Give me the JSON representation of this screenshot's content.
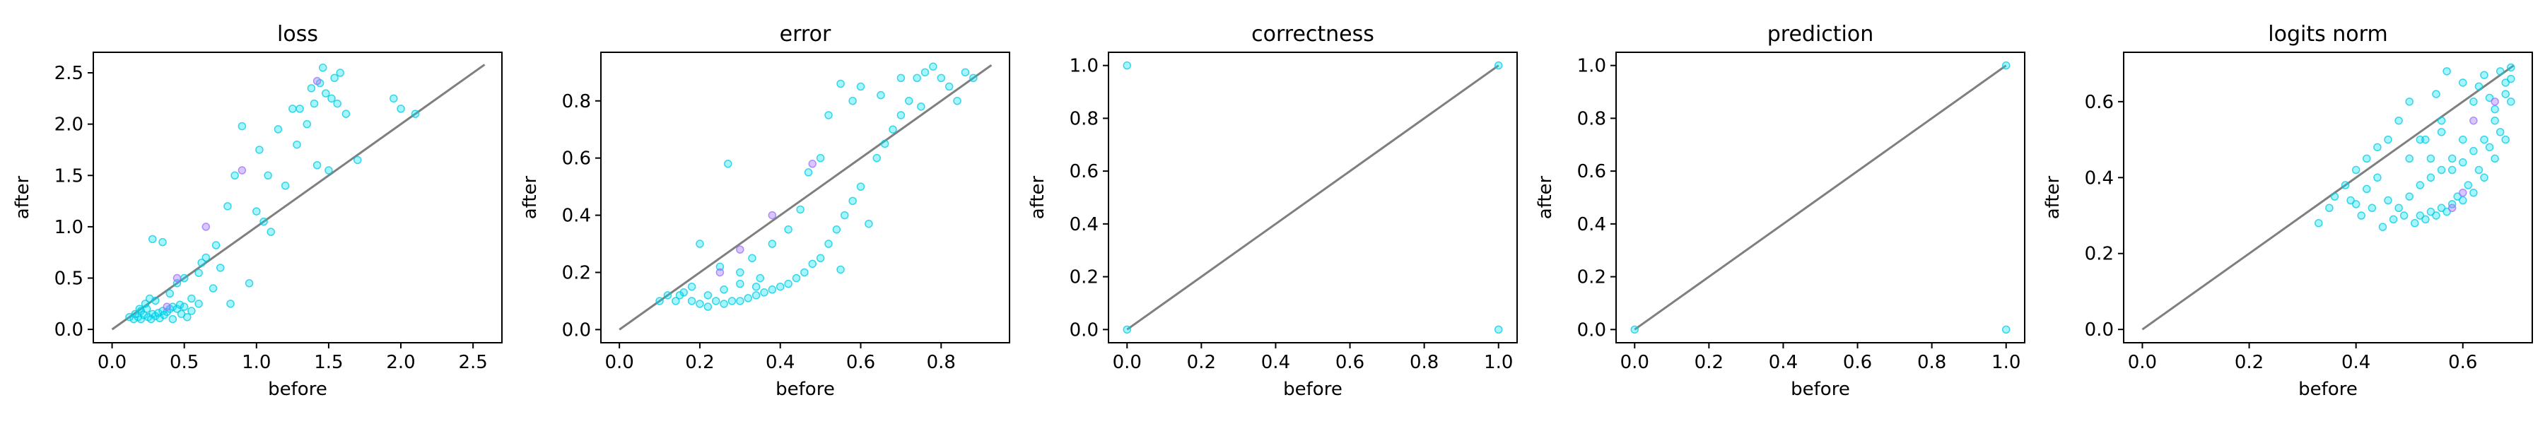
{
  "chart_data": [
    {
      "type": "scatter",
      "title": "loss",
      "xlabel": "before",
      "ylabel": "after",
      "xlim": [
        -0.13,
        2.7
      ],
      "ylim": [
        -0.13,
        2.7
      ],
      "xticks": [
        0.0,
        0.5,
        1.0,
        1.5,
        2.0,
        2.5
      ],
      "yticks": [
        0.0,
        0.5,
        1.0,
        1.5,
        2.0,
        2.5
      ],
      "tick_decimals": 1,
      "diagonal": [
        0,
        2.58
      ],
      "points": [
        [
          0.15,
          0.1
        ],
        [
          0.18,
          0.12
        ],
        [
          0.2,
          0.1
        ],
        [
          0.22,
          0.14
        ],
        [
          0.25,
          0.12
        ],
        [
          0.28,
          0.15
        ],
        [
          0.3,
          0.13
        ],
        [
          0.32,
          0.16
        ],
        [
          0.35,
          0.18
        ],
        [
          0.38,
          0.17
        ],
        [
          0.4,
          0.2
        ],
        [
          0.42,
          0.22
        ],
        [
          0.45,
          0.2
        ],
        [
          0.47,
          0.24
        ],
        [
          0.5,
          0.22
        ],
        [
          0.2,
          0.18
        ],
        [
          0.24,
          0.2
        ],
        [
          0.27,
          0.1
        ],
        [
          0.33,
          0.11
        ],
        [
          0.36,
          0.14
        ],
        [
          0.12,
          0.12
        ],
        [
          0.16,
          0.15
        ],
        [
          0.19,
          0.2
        ],
        [
          0.23,
          0.25
        ],
        [
          0.26,
          0.3
        ],
        [
          0.3,
          0.28
        ],
        [
          0.28,
          0.88
        ],
        [
          0.35,
          0.85
        ],
        [
          0.4,
          0.35
        ],
        [
          0.45,
          0.45
        ],
        [
          0.5,
          0.5
        ],
        [
          0.55,
          0.3
        ],
        [
          0.6,
          0.55
        ],
        [
          0.62,
          0.65
        ],
        [
          0.65,
          0.7
        ],
        [
          0.7,
          0.4
        ],
        [
          0.72,
          0.82
        ],
        [
          0.75,
          0.6
        ],
        [
          0.8,
          1.2
        ],
        [
          0.82,
          0.25
        ],
        [
          0.85,
          1.5
        ],
        [
          0.9,
          1.98
        ],
        [
          0.95,
          0.45
        ],
        [
          1.0,
          1.15
        ],
        [
          1.02,
          1.75
        ],
        [
          1.05,
          1.05
        ],
        [
          1.08,
          1.5
        ],
        [
          1.1,
          0.95
        ],
        [
          1.15,
          1.95
        ],
        [
          1.2,
          1.4
        ],
        [
          1.25,
          2.15
        ],
        [
          1.28,
          1.8
        ],
        [
          1.3,
          2.15
        ],
        [
          1.35,
          2.0
        ],
        [
          1.38,
          2.35
        ],
        [
          1.4,
          2.2
        ],
        [
          1.42,
          1.6
        ],
        [
          1.44,
          2.4
        ],
        [
          1.46,
          2.55
        ],
        [
          1.48,
          2.3
        ],
        [
          1.5,
          1.55
        ],
        [
          1.52,
          2.25
        ],
        [
          1.54,
          2.45
        ],
        [
          1.56,
          2.2
        ],
        [
          1.58,
          2.5
        ],
        [
          1.62,
          2.1
        ],
        [
          1.7,
          1.65
        ],
        [
          1.95,
          2.25
        ],
        [
          2.0,
          2.15
        ],
        [
          2.1,
          2.1
        ],
        [
          0.55,
          0.18
        ],
        [
          0.6,
          0.25
        ],
        [
          0.48,
          0.15
        ],
        [
          0.52,
          0.12
        ],
        [
          0.42,
          0.1
        ]
      ],
      "highlight_points": [
        [
          0.45,
          0.5
        ],
        [
          0.65,
          1.0
        ],
        [
          1.42,
          2.42
        ],
        [
          0.9,
          1.55
        ],
        [
          0.38,
          0.22
        ]
      ]
    },
    {
      "type": "scatter",
      "title": "error",
      "xlabel": "before",
      "ylabel": "after",
      "xlim": [
        -0.046,
        0.97
      ],
      "ylim": [
        -0.046,
        0.97
      ],
      "xticks": [
        0.0,
        0.2,
        0.4,
        0.6,
        0.8
      ],
      "yticks": [
        0.0,
        0.2,
        0.4,
        0.6,
        0.8
      ],
      "tick_decimals": 1,
      "diagonal": [
        0,
        0.925
      ],
      "points": [
        [
          0.1,
          0.1
        ],
        [
          0.12,
          0.12
        ],
        [
          0.14,
          0.1
        ],
        [
          0.16,
          0.13
        ],
        [
          0.18,
          0.15
        ],
        [
          0.2,
          0.09
        ],
        [
          0.22,
          0.08
        ],
        [
          0.24,
          0.1
        ],
        [
          0.26,
          0.09
        ],
        [
          0.28,
          0.1
        ],
        [
          0.3,
          0.1
        ],
        [
          0.32,
          0.11
        ],
        [
          0.34,
          0.12
        ],
        [
          0.36,
          0.13
        ],
        [
          0.38,
          0.14
        ],
        [
          0.4,
          0.15
        ],
        [
          0.42,
          0.16
        ],
        [
          0.44,
          0.18
        ],
        [
          0.46,
          0.2
        ],
        [
          0.48,
          0.23
        ],
        [
          0.5,
          0.25
        ],
        [
          0.52,
          0.3
        ],
        [
          0.54,
          0.35
        ],
        [
          0.56,
          0.4
        ],
        [
          0.58,
          0.45
        ],
        [
          0.6,
          0.5
        ],
        [
          0.62,
          0.37
        ],
        [
          0.64,
          0.6
        ],
        [
          0.66,
          0.65
        ],
        [
          0.68,
          0.7
        ],
        [
          0.7,
          0.75
        ],
        [
          0.72,
          0.8
        ],
        [
          0.74,
          0.88
        ],
        [
          0.76,
          0.9
        ],
        [
          0.78,
          0.92
        ],
        [
          0.8,
          0.88
        ],
        [
          0.82,
          0.85
        ],
        [
          0.84,
          0.8
        ],
        [
          0.86,
          0.9
        ],
        [
          0.88,
          0.88
        ],
        [
          0.2,
          0.3
        ],
        [
          0.25,
          0.22
        ],
        [
          0.27,
          0.58
        ],
        [
          0.3,
          0.2
        ],
        [
          0.33,
          0.25
        ],
        [
          0.35,
          0.18
        ],
        [
          0.38,
          0.3
        ],
        [
          0.42,
          0.35
        ],
        [
          0.45,
          0.42
        ],
        [
          0.47,
          0.55
        ],
        [
          0.5,
          0.6
        ],
        [
          0.52,
          0.75
        ],
        [
          0.55,
          0.21
        ],
        [
          0.55,
          0.86
        ],
        [
          0.58,
          0.8
        ],
        [
          0.6,
          0.85
        ],
        [
          0.65,
          0.82
        ],
        [
          0.7,
          0.88
        ],
        [
          0.75,
          0.78
        ],
        [
          0.18,
          0.1
        ],
        [
          0.22,
          0.12
        ],
        [
          0.26,
          0.14
        ],
        [
          0.3,
          0.16
        ],
        [
          0.34,
          0.15
        ],
        [
          0.15,
          0.12
        ]
      ],
      "highlight_points": [
        [
          0.38,
          0.4
        ],
        [
          0.48,
          0.58
        ],
        [
          0.25,
          0.2
        ],
        [
          0.3,
          0.28
        ]
      ]
    },
    {
      "type": "scatter",
      "title": "correctness",
      "xlabel": "before",
      "ylabel": "after",
      "xlim": [
        -0.05,
        1.05
      ],
      "ylim": [
        -0.05,
        1.05
      ],
      "xticks": [
        0.0,
        0.2,
        0.4,
        0.6,
        0.8,
        1.0
      ],
      "yticks": [
        0.0,
        0.2,
        0.4,
        0.6,
        0.8,
        1.0
      ],
      "tick_decimals": 1,
      "diagonal": [
        0,
        1
      ],
      "points": [
        [
          0,
          0
        ],
        [
          0,
          1
        ],
        [
          1,
          0
        ],
        [
          1,
          1
        ]
      ],
      "highlight_points": []
    },
    {
      "type": "scatter",
      "title": "prediction",
      "xlabel": "before",
      "ylabel": "after",
      "xlim": [
        -0.05,
        1.05
      ],
      "ylim": [
        -0.05,
        1.05
      ],
      "xticks": [
        0.0,
        0.2,
        0.4,
        0.6,
        0.8,
        1.0
      ],
      "yticks": [
        0.0,
        0.2,
        0.4,
        0.6,
        0.8,
        1.0
      ],
      "tick_decimals": 1,
      "diagonal": [
        0,
        1
      ],
      "points": [
        [
          0,
          0
        ],
        [
          1,
          0
        ],
        [
          1,
          1
        ]
      ],
      "highlight_points": []
    },
    {
      "type": "scatter",
      "title": "logits norm",
      "xlabel": "before",
      "ylabel": "after",
      "xlim": [
        -0.035,
        0.73
      ],
      "ylim": [
        -0.035,
        0.73
      ],
      "xticks": [
        0.0,
        0.2,
        0.4,
        0.6
      ],
      "yticks": [
        0.0,
        0.2,
        0.4,
        0.6
      ],
      "tick_decimals": 1,
      "diagonal": [
        0,
        0.695
      ],
      "points": [
        [
          0.33,
          0.28
        ],
        [
          0.35,
          0.32
        ],
        [
          0.36,
          0.35
        ],
        [
          0.38,
          0.38
        ],
        [
          0.4,
          0.42
        ],
        [
          0.42,
          0.45
        ],
        [
          0.44,
          0.48
        ],
        [
          0.46,
          0.5
        ],
        [
          0.48,
          0.55
        ],
        [
          0.5,
          0.6
        ],
        [
          0.52,
          0.3
        ],
        [
          0.52,
          0.5
        ],
        [
          0.54,
          0.31
        ],
        [
          0.54,
          0.45
        ],
        [
          0.56,
          0.32
        ],
        [
          0.56,
          0.55
        ],
        [
          0.58,
          0.33
        ],
        [
          0.58,
          0.42
        ],
        [
          0.6,
          0.34
        ],
        [
          0.6,
          0.5
        ],
        [
          0.62,
          0.36
        ],
        [
          0.62,
          0.6
        ],
        [
          0.64,
          0.4
        ],
        [
          0.64,
          0.67
        ],
        [
          0.66,
          0.45
        ],
        [
          0.66,
          0.55
        ],
        [
          0.68,
          0.5
        ],
        [
          0.68,
          0.65
        ],
        [
          0.69,
          0.6
        ],
        [
          0.69,
          0.69
        ],
        [
          0.45,
          0.27
        ],
        [
          0.47,
          0.29
        ],
        [
          0.49,
          0.3
        ],
        [
          0.51,
          0.28
        ],
        [
          0.53,
          0.29
        ],
        [
          0.55,
          0.3
        ],
        [
          0.57,
          0.31
        ],
        [
          0.59,
          0.35
        ],
        [
          0.61,
          0.38
        ],
        [
          0.63,
          0.42
        ],
        [
          0.65,
          0.48
        ],
        [
          0.67,
          0.52
        ],
        [
          0.46,
          0.34
        ],
        [
          0.48,
          0.32
        ],
        [
          0.5,
          0.35
        ],
        [
          0.52,
          0.38
        ],
        [
          0.54,
          0.4
        ],
        [
          0.56,
          0.42
        ],
        [
          0.58,
          0.45
        ],
        [
          0.6,
          0.44
        ],
        [
          0.62,
          0.47
        ],
        [
          0.64,
          0.5
        ],
        [
          0.66,
          0.58
        ],
        [
          0.68,
          0.62
        ],
        [
          0.4,
          0.33
        ],
        [
          0.42,
          0.37
        ],
        [
          0.44,
          0.4
        ],
        [
          0.43,
          0.32
        ],
        [
          0.41,
          0.3
        ],
        [
          0.39,
          0.34
        ],
        [
          0.55,
          0.62
        ],
        [
          0.57,
          0.68
        ],
        [
          0.6,
          0.65
        ],
        [
          0.63,
          0.64
        ],
        [
          0.65,
          0.61
        ],
        [
          0.67,
          0.68
        ],
        [
          0.69,
          0.66
        ],
        [
          0.5,
          0.45
        ],
        [
          0.53,
          0.5
        ],
        [
          0.56,
          0.52
        ]
      ],
      "highlight_points": [
        [
          0.6,
          0.36
        ],
        [
          0.62,
          0.55
        ],
        [
          0.66,
          0.6
        ],
        [
          0.58,
          0.32
        ]
      ]
    }
  ],
  "colors": {
    "point": "#00e5ff",
    "point_edge": "#00c8e0",
    "highlight": "#a074ff",
    "diagonal": "#7f7f7f",
    "axes": "#000000"
  }
}
